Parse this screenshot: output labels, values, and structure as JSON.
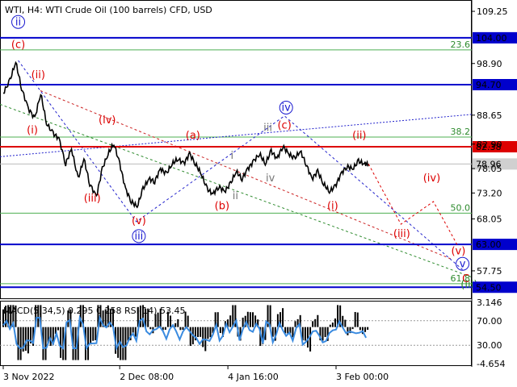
{
  "header": "WTI, H4:  WTI Crude Oil (100 barrels) CFD, USD",
  "indicator_header": "MACD(5,34,5) 0.295 0.258 RSI(14) 53.45",
  "chart_data": {
    "type": "line",
    "title": "WTI, H4:  WTI Crude Oil (100 barrels) CFD, USD",
    "ylim": [
      52.3,
      111.5
    ],
    "price_ticks": [
      "109.25",
      "98.90",
      "88.65",
      "82.90",
      "78.05",
      "73.20",
      "68.05",
      "57.75"
    ],
    "price_tick_values": [
      109.25,
      98.9,
      88.65,
      82.9,
      78.05,
      73.2,
      68.05,
      57.75
    ],
    "x_ticks": [
      "3 Nov 2022",
      "2 Dec 08:00",
      "4 Jan 16:00",
      "3 Feb 00:00"
    ],
    "x_tick_bars": [
      0,
      140,
      270,
      400
    ],
    "levels": [
      {
        "label": "104.00",
        "value": 104.0,
        "color": "#0000cc"
      },
      {
        "label": "94.70",
        "value": 94.7,
        "color": "#0000cc"
      },
      {
        "label": "82.38",
        "value": 82.38,
        "color": "#dd0000"
      },
      {
        "label": "63.00",
        "value": 63.0,
        "color": "#0000cc"
      },
      {
        "label": "54.50",
        "value": 54.5,
        "color": "#0000cc"
      }
    ],
    "current_price": {
      "label": "78.96",
      "value": 78.96
    },
    "fibonacci": [
      {
        "label": "23.6",
        "value": 101.6
      },
      {
        "label": "38.2",
        "value": 84.3
      },
      {
        "label": "50.0",
        "value": 69.2
      },
      {
        "label": "61.8",
        "value": 55.2
      }
    ],
    "price_series": [
      {
        "bar": 0,
        "value": 93
      },
      {
        "bar": 8,
        "value": 95.5
      },
      {
        "bar": 15,
        "value": 99.2
      },
      {
        "bar": 22,
        "value": 94
      },
      {
        "bar": 30,
        "value": 90
      },
      {
        "bar": 38,
        "value": 88
      },
      {
        "bar": 45,
        "value": 93
      },
      {
        "bar": 52,
        "value": 87
      },
      {
        "bar": 60,
        "value": 85
      },
      {
        "bar": 67,
        "value": 84
      },
      {
        "bar": 75,
        "value": 79
      },
      {
        "bar": 82,
        "value": 82
      },
      {
        "bar": 90,
        "value": 76
      },
      {
        "bar": 97,
        "value": 80
      },
      {
        "bar": 104,
        "value": 75
      },
      {
        "bar": 112,
        "value": 72.5
      },
      {
        "bar": 119,
        "value": 78
      },
      {
        "bar": 126,
        "value": 81
      },
      {
        "bar": 133,
        "value": 83
      },
      {
        "bar": 140,
        "value": 79
      },
      {
        "bar": 147,
        "value": 74
      },
      {
        "bar": 154,
        "value": 71.5
      },
      {
        "bar": 161,
        "value": 70.5
      },
      {
        "bar": 168,
        "value": 74
      },
      {
        "bar": 175,
        "value": 76
      },
      {
        "bar": 182,
        "value": 75.5
      },
      {
        "bar": 189,
        "value": 78
      },
      {
        "bar": 196,
        "value": 77
      },
      {
        "bar": 203,
        "value": 79
      },
      {
        "bar": 210,
        "value": 80
      },
      {
        "bar": 217,
        "value": 79
      },
      {
        "bar": 224,
        "value": 81
      },
      {
        "bar": 231,
        "value": 79
      },
      {
        "bar": 238,
        "value": 77
      },
      {
        "bar": 245,
        "value": 74
      },
      {
        "bar": 252,
        "value": 73
      },
      {
        "bar": 259,
        "value": 74.5
      },
      {
        "bar": 266,
        "value": 73.5
      },
      {
        "bar": 273,
        "value": 75
      },
      {
        "bar": 280,
        "value": 77.5
      },
      {
        "bar": 287,
        "value": 76
      },
      {
        "bar": 294,
        "value": 78
      },
      {
        "bar": 301,
        "value": 79.5
      },
      {
        "bar": 308,
        "value": 81
      },
      {
        "bar": 315,
        "value": 79
      },
      {
        "bar": 322,
        "value": 81.5
      },
      {
        "bar": 329,
        "value": 80
      },
      {
        "bar": 336,
        "value": 82.5
      },
      {
        "bar": 343,
        "value": 81
      },
      {
        "bar": 350,
        "value": 80
      },
      {
        "bar": 357,
        "value": 81.5
      },
      {
        "bar": 364,
        "value": 79
      },
      {
        "bar": 371,
        "value": 76
      },
      {
        "bar": 378,
        "value": 77.5
      },
      {
        "bar": 385,
        "value": 75
      },
      {
        "bar": 392,
        "value": 73.5
      },
      {
        "bar": 399,
        "value": 74.5
      },
      {
        "bar": 406,
        "value": 77
      },
      {
        "bar": 413,
        "value": 78.5
      },
      {
        "bar": 420,
        "value": 78
      },
      {
        "bar": 427,
        "value": 79.5
      },
      {
        "bar": 434,
        "value": 79
      },
      {
        "bar": 439,
        "value": 78.96
      }
    ],
    "forecast_path": [
      {
        "bar": 439,
        "value": 78.96
      },
      {
        "bar": 478,
        "value": 67
      },
      {
        "bar": 517,
        "value": 71.5
      },
      {
        "bar": 547,
        "value": 62.5
      }
    ],
    "wave_labels": [
      {
        "text": "ii",
        "circled": true,
        "color": "#1a1ad0",
        "bar": 18,
        "value": 106.5
      },
      {
        "text": "(c)",
        "color": "#dd0000",
        "bar": 18,
        "value": 102
      },
      {
        "text": "(ii)",
        "color": "#dd0000",
        "bar": 42,
        "value": 96
      },
      {
        "text": "(i)",
        "color": "#dd0000",
        "bar": 35,
        "value": 85
      },
      {
        "text": "(iv)",
        "color": "#dd0000",
        "bar": 125,
        "value": 87
      },
      {
        "text": "(iii)",
        "color": "#dd0000",
        "bar": 107,
        "value": 71.5
      },
      {
        "text": "(v)",
        "color": "#dd0000",
        "bar": 163,
        "value": 67
      },
      {
        "text": "iii",
        "circled": true,
        "color": "#1a1ad0",
        "bar": 163,
        "value": 64
      },
      {
        "text": "(a)",
        "color": "#dd0000",
        "bar": 228,
        "value": 84
      },
      {
        "text": "(b)",
        "color": "#dd0000",
        "bar": 263,
        "value": 70
      },
      {
        "text": "i",
        "color": "#777777",
        "bar": 275,
        "value": 80
      },
      {
        "text": "ii",
        "color": "#777777",
        "bar": 279,
        "value": 72
      },
      {
        "text": "iii",
        "color": "#777777",
        "bar": 318,
        "value": 85.5
      },
      {
        "text": "(c)",
        "color": "#dd0000",
        "bar": 338,
        "value": 86
      },
      {
        "text": "iv",
        "circled": true,
        "color": "#1a1ad0",
        "bar": 340,
        "value": 89.5
      },
      {
        "text": "iv",
        "color": "#777777",
        "bar": 321,
        "value": 75.5
      },
      {
        "text": "(ii)",
        "color": "#dd0000",
        "bar": 428,
        "value": 84
      },
      {
        "text": "(i)",
        "color": "#dd0000",
        "bar": 396,
        "value": 70
      },
      {
        "text": "(iii)",
        "color": "#dd0000",
        "bar": 479,
        "value": 64.5
      },
      {
        "text": "(iv)",
        "color": "#dd0000",
        "bar": 515,
        "value": 75.5
      },
      {
        "text": "(v)",
        "color": "#dd0000",
        "bar": 547,
        "value": 61
      },
      {
        "text": "v",
        "circled": true,
        "color": "#1a1ad0",
        "bar": 552,
        "value": 58.5
      },
      {
        "text": "C",
        "color": "#dd0000",
        "bar": 556,
        "value": 55.5
      },
      {
        "text": "(iii)",
        "color": "#2e8b2e",
        "bar": 560,
        "value": 54.4
      }
    ],
    "macd": {
      "ylim": [
        -4.654,
        3.146
      ],
      "left_ticks": [
        "3.146",
        "-4.654"
      ],
      "left_tick_values": [
        3.146,
        -4.654
      ],
      "right_ticks": [
        "70.00",
        "30.00"
      ],
      "right_tick_values": [
        70,
        30
      ]
    }
  }
}
